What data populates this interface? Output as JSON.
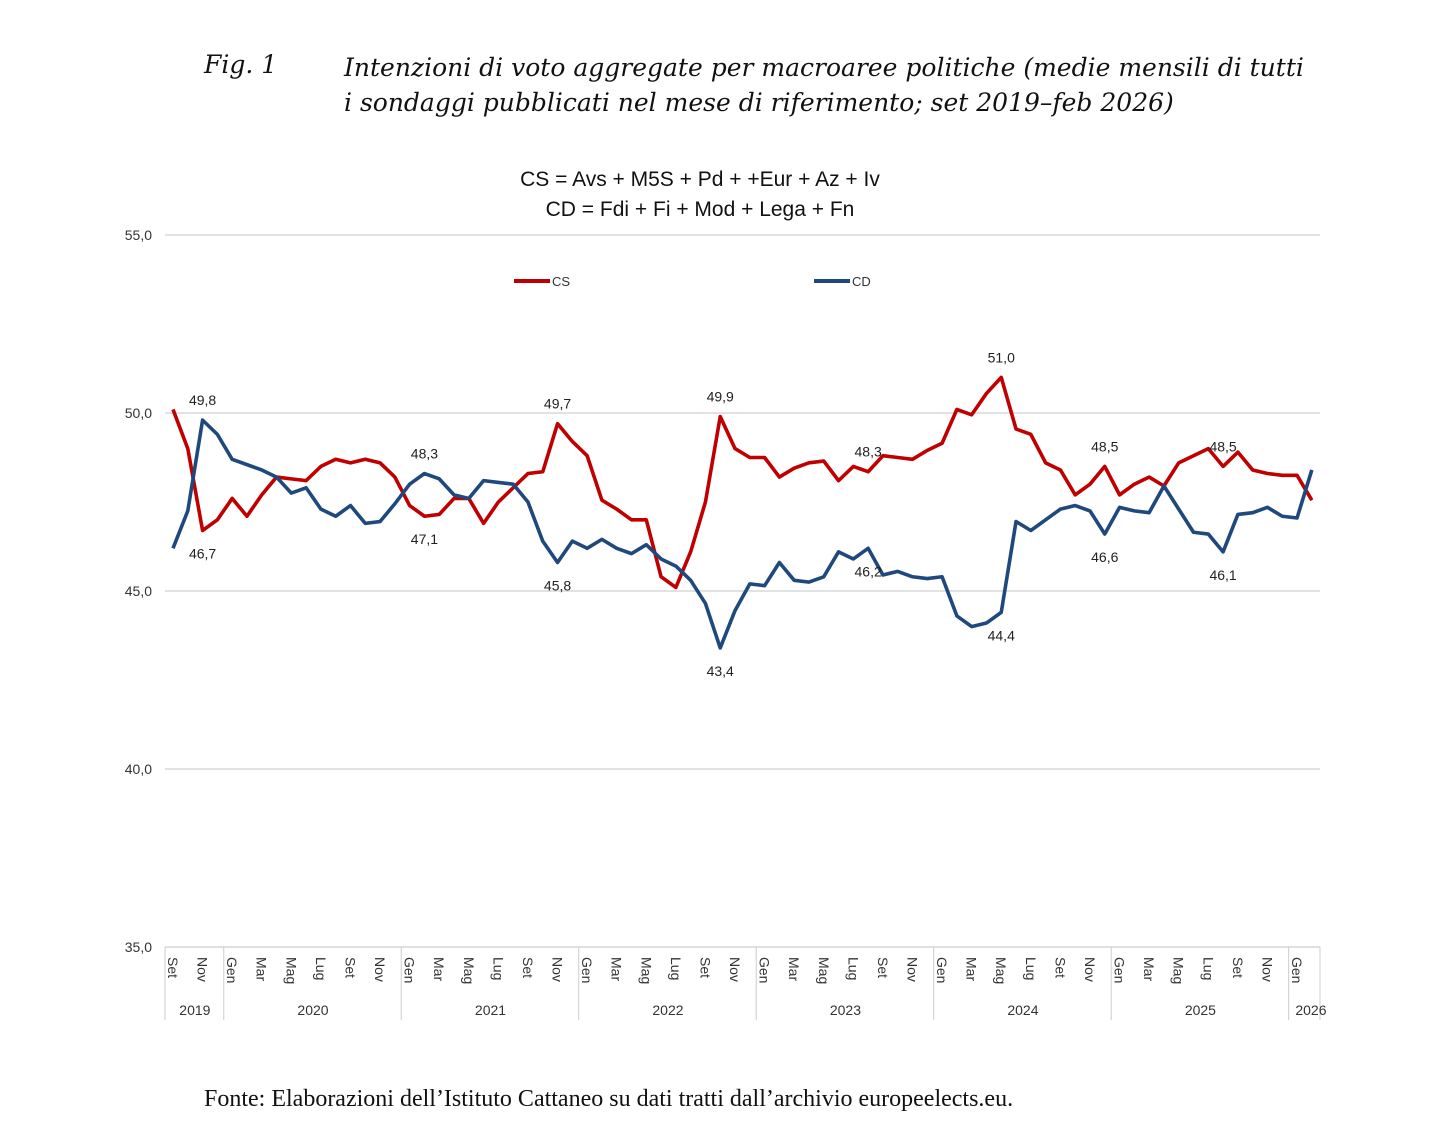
{
  "figure": {
    "label": "Fig. 1",
    "title": "Intenzioni di voto aggregate per macroaree politiche (medie mensili di tutti i sondaggi pubblicati nel mese di riferimento; set 2019–feb 2026)",
    "source": "Fonte: Elaborazioni dell’Istituto Cattaneo su dati tratti dall’archivio europeelects.eu."
  },
  "chart_data": {
    "type": "line",
    "title": [
      "CS = Avs + M5S + Pd + +Eur + Az + Iv",
      "CD = Fdi + Fi + Mod + Lega + Fn"
    ],
    "ylim": [
      35,
      55
    ],
    "yticks": [
      "35,0",
      "40,0",
      "45,0",
      "50,0",
      "55,0"
    ],
    "grid": true,
    "legend": "top-center",
    "month_labels": [
      "Set",
      "Nov",
      "Gen",
      "Mar",
      "Mag",
      "Lug",
      "Set",
      "Nov",
      "Gen",
      "Mar",
      "Mag",
      "Lug",
      "Set",
      "Nov",
      "Gen",
      "Mar",
      "Mag",
      "Lug",
      "Set",
      "Nov",
      "Gen",
      "Mar",
      "Mag",
      "Lug",
      "Set",
      "Nov",
      "Gen",
      "Mar",
      "Mag",
      "Lug",
      "Set",
      "Nov",
      "Gen",
      "Mar",
      "Mag",
      "Lug",
      "Set",
      "Nov",
      "Gen"
    ],
    "years": [
      {
        "label": "2019",
        "start": 0,
        "end": 3
      },
      {
        "label": "2020",
        "start": 4,
        "end": 15
      },
      {
        "label": "2021",
        "start": 16,
        "end": 27
      },
      {
        "label": "2022",
        "start": 28,
        "end": 39
      },
      {
        "label": "2023",
        "start": 40,
        "end": 51
      },
      {
        "label": "2024",
        "start": 52,
        "end": 63
      },
      {
        "label": "2025",
        "start": 64,
        "end": 75
      },
      {
        "label": "2026",
        "start": 76,
        "end": 77
      }
    ],
    "series": [
      {
        "name": "CS",
        "color": "#c00000",
        "values": [
          50.1,
          49.0,
          46.7,
          47.0,
          47.6,
          47.1,
          47.7,
          48.2,
          48.15,
          48.1,
          48.5,
          48.7,
          48.6,
          48.7,
          48.6,
          48.2,
          47.4,
          47.1,
          47.15,
          47.6,
          47.6,
          46.9,
          47.5,
          47.9,
          48.3,
          48.35,
          49.7,
          49.2,
          48.8,
          47.55,
          47.3,
          47.0,
          47.0,
          45.4,
          45.1,
          46.1,
          47.5,
          49.9,
          49.0,
          48.75,
          48.75,
          48.2,
          48.45,
          48.6,
          48.65,
          48.1,
          48.5,
          48.35,
          48.8,
          48.75,
          48.7,
          48.95,
          49.15,
          50.1,
          49.95,
          50.55,
          51.0,
          49.55,
          49.4,
          48.6,
          48.4,
          47.7,
          48.0,
          48.5,
          47.7,
          48.0,
          48.2,
          47.95,
          48.6,
          48.8,
          49.0,
          48.5,
          48.9,
          48.4,
          48.3,
          48.25,
          48.25,
          47.55
        ],
        "labels": [
          {
            "i": 2,
            "text": "46,7",
            "pos": "below"
          },
          {
            "i": 17,
            "text": "47,1",
            "pos": "below"
          },
          {
            "i": 26,
            "text": "49,7",
            "pos": "above"
          },
          {
            "i": 37,
            "text": "49,9",
            "pos": "above"
          },
          {
            "i": 47,
            "text": "48,3",
            "pos": "above"
          },
          {
            "i": 56,
            "text": "51,0",
            "pos": "above"
          },
          {
            "i": 63,
            "text": "48,5",
            "pos": "above"
          },
          {
            "i": 71,
            "text": "48,5",
            "pos": "above"
          }
        ]
      },
      {
        "name": "CD",
        "color": "#1f497d",
        "values": [
          46.2,
          47.25,
          49.8,
          49.4,
          48.7,
          48.55,
          48.4,
          48.2,
          47.75,
          47.9,
          47.3,
          47.1,
          47.4,
          46.9,
          46.95,
          47.45,
          48.0,
          48.3,
          48.15,
          47.7,
          47.6,
          48.1,
          48.05,
          48.0,
          47.5,
          46.4,
          45.8,
          46.4,
          46.2,
          46.45,
          46.2,
          46.05,
          46.3,
          45.9,
          45.7,
          45.3,
          44.65,
          43.4,
          44.45,
          45.2,
          45.15,
          45.8,
          45.3,
          45.25,
          45.4,
          46.1,
          45.9,
          46.2,
          45.45,
          45.55,
          45.4,
          45.35,
          45.4,
          44.3,
          44.0,
          44.1,
          44.4,
          46.95,
          46.7,
          47.0,
          47.3,
          47.4,
          47.25,
          46.6,
          47.35,
          47.25,
          47.2,
          47.95,
          47.3,
          46.65,
          46.6,
          46.1,
          47.15,
          47.2,
          47.35,
          47.1,
          47.05,
          48.4
        ],
        "labels": [
          {
            "i": 2,
            "text": "49,8",
            "pos": "above"
          },
          {
            "i": 17,
            "text": "48,3",
            "pos": "above"
          },
          {
            "i": 26,
            "text": "45,8",
            "pos": "below"
          },
          {
            "i": 37,
            "text": "43,4",
            "pos": "below"
          },
          {
            "i": 47,
            "text": "46,2",
            "pos": "below"
          },
          {
            "i": 56,
            "text": "44,4",
            "pos": "below"
          },
          {
            "i": 63,
            "text": "46,6",
            "pos": "below"
          },
          {
            "i": 71,
            "text": "46,1",
            "pos": "below"
          }
        ]
      }
    ]
  }
}
